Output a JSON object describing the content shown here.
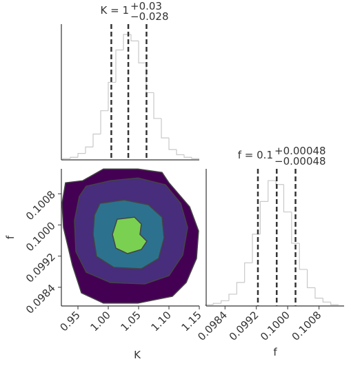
{
  "chart_data": [
    {
      "type": "hist",
      "title": "K = 1",
      "title_sup": "+0.03",
      "title_sub": "−0.028",
      "bins": [
        0.925,
        0.9375,
        0.95,
        0.9625,
        0.975,
        0.9875,
        1.0,
        1.0125,
        1.025,
        1.0375,
        1.05,
        1.0625,
        1.075,
        1.0875,
        1.1,
        1.1125,
        1.125,
        1.1375,
        1.15
      ],
      "counts": [
        0.01,
        0.02,
        0.05,
        0.1,
        0.2,
        0.38,
        0.6,
        0.85,
        0.97,
        0.92,
        0.75,
        0.52,
        0.32,
        0.17,
        0.08,
        0.04,
        0.02,
        0.01
      ],
      "quantiles": [
        1.005,
        1.033,
        1.063
      ],
      "color": "#c8c8c8",
      "xlim": [
        0.9227,
        1.15
      ],
      "ylim": [
        0,
        1.05
      ]
    },
    {
      "type": "contour",
      "xlabel": "K",
      "ylabel": "f",
      "xlim": [
        0.9227,
        1.15
      ],
      "ylim": [
        0.09792,
        0.10144
      ],
      "xticks": [
        0.95,
        {
          "value": 1.0,
          "label": "1.00"
        },
        1.05,
        {
          "value": 1.1,
          "label": "1.10"
        },
        1.15
      ],
      "yticks": [
        0.0984,
        0.0992,
        {
          "value": 0.1,
          "label": "0.1000"
        },
        0.1008
      ],
      "levels": [
        {
          "color": "#440154",
          "points": [
            [
              0.9295,
              0.101083
            ],
            [
              0.9579,
              0.101136
            ],
            [
              0.992,
              0.101436
            ],
            [
              1.0488,
              0.101436
            ],
            [
              1.0886,
              0.101348
            ],
            [
              1.1,
              0.101083
            ],
            [
              1.1341,
              0.100465
            ],
            [
              1.1488,
              0.099847
            ],
            [
              1.1454,
              0.09914
            ],
            [
              1.1284,
              0.098522
            ],
            [
              1.1057,
              0.098169
            ],
            [
              1.0488,
              0.097992
            ],
            [
              0.992,
              0.097992
            ],
            [
              0.9557,
              0.098257
            ],
            [
              0.9409,
              0.098964
            ],
            [
              0.9261,
              0.099935
            ],
            [
              0.9238,
              0.100553
            ]
          ]
        },
        {
          "color": "#472d7b",
          "points": [
            [
              0.9636,
              0.100994
            ],
            [
              1.0034,
              0.101136
            ],
            [
              1.0488,
              0.101206
            ],
            [
              1.0943,
              0.10103
            ],
            [
              1.1193,
              0.100553
            ],
            [
              1.1307,
              0.099935
            ],
            [
              1.1227,
              0.099228
            ],
            [
              1.1,
              0.098699
            ],
            [
              1.0602,
              0.098487
            ],
            [
              1.0034,
              0.098522
            ],
            [
              0.9636,
              0.098787
            ],
            [
              0.9466,
              0.099317
            ],
            [
              0.9443,
              0.100111
            ],
            [
              0.9522,
              0.10073
            ]
          ]
        },
        {
          "color": "#2c728e",
          "points": [
            [
              0.9863,
              0.100553
            ],
            [
              1.0261,
              0.100641
            ],
            [
              1.0659,
              0.100518
            ],
            [
              1.0886,
              0.1002
            ],
            [
              1.092,
              0.09967
            ],
            [
              1.0829,
              0.09914
            ],
            [
              1.0545,
              0.098875
            ],
            [
              1.0091,
              0.098911
            ],
            [
              0.9807,
              0.099193
            ],
            [
              0.975,
              0.099758
            ],
            [
              0.9772,
              0.100253
            ]
          ]
        },
        {
          "color": "#7ad151",
          "points": [
            [
              1.0147,
              0.100147
            ],
            [
              1.0432,
              0.1002
            ],
            [
              1.0545,
              0.100023
            ],
            [
              1.0522,
              0.099758
            ],
            [
              1.0636,
              0.099582
            ],
            [
              1.0545,
              0.09937
            ],
            [
              1.0318,
              0.099264
            ],
            [
              1.0125,
              0.099405
            ],
            [
              1.0068,
              0.099758
            ]
          ]
        }
      ]
    },
    {
      "type": "hist",
      "title": "f = 0.1",
      "title_sup": "+0.00048",
      "title_sub": "−0.00048",
      "xlabel": "f",
      "bins": [
        0.0979,
        0.0981,
        0.0983,
        0.0985,
        0.0987,
        0.0989,
        0.0991,
        0.0993,
        0.0995,
        0.0997,
        0.0999,
        0.1001,
        0.1003,
        0.1005,
        0.1007,
        0.1009,
        0.1011,
        0.1013
      ],
      "counts": [
        0.01,
        0.02,
        0.04,
        0.09,
        0.18,
        0.33,
        0.55,
        0.8,
        0.96,
        0.93,
        0.72,
        0.48,
        0.28,
        0.14,
        0.06,
        0.03,
        0.01
      ],
      "quantiles": [
        0.09924,
        0.09972,
        0.1002
      ],
      "color": "#c8c8c8",
      "xlim": [
        0.09792,
        0.10144
      ],
      "ylim": [
        0,
        1.05
      ],
      "xticks": [
        0.0984,
        0.0992,
        {
          "value": 0.1,
          "label": "0.1000"
        },
        0.1008
      ]
    }
  ]
}
